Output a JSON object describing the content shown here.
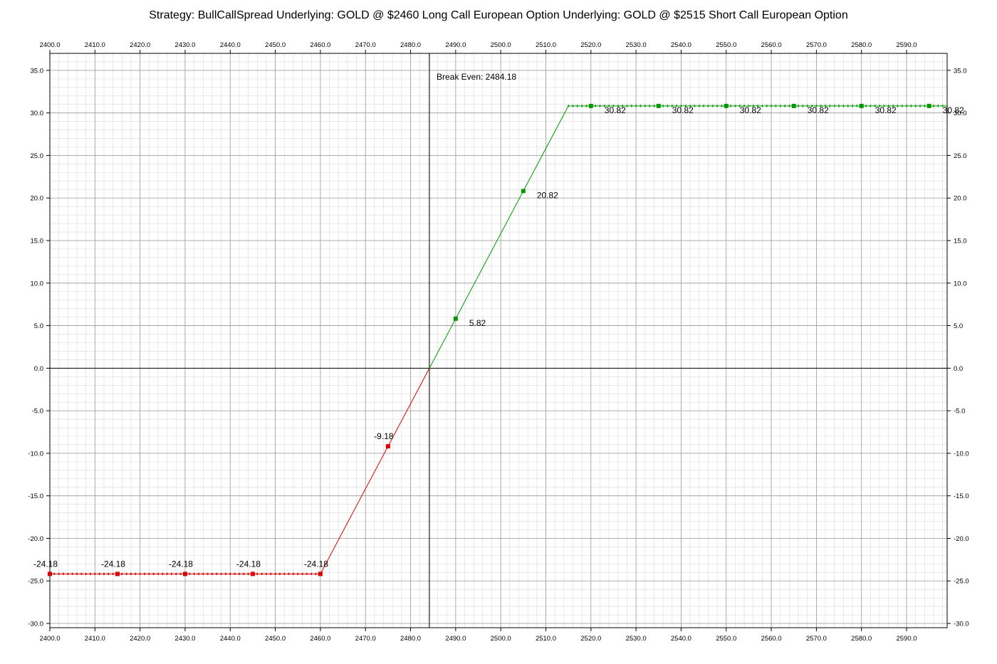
{
  "chart_data": {
    "type": "line",
    "title": "Strategy: BullCallSpread Underlying: GOLD @ $2460 Long Call European Option Underlying: GOLD @ $2515 Short Call European Option",
    "xlabel": "",
    "ylabel": "",
    "xlim": [
      2400,
      2599
    ],
    "ylim": [
      -30.5,
      37
    ],
    "x_ticks": [
      2400,
      2410,
      2420,
      2430,
      2440,
      2450,
      2460,
      2470,
      2480,
      2490,
      2500,
      2510,
      2520,
      2530,
      2540,
      2550,
      2560,
      2570,
      2580,
      2590
    ],
    "x_tick_labels": [
      "2400.0",
      "2410.0",
      "2420.0",
      "2430.0",
      "2440.0",
      "2450.0",
      "2460.0",
      "2470.0",
      "2480.0",
      "2490.0",
      "2500.0",
      "2510.0",
      "2520.0",
      "2530.0",
      "2540.0",
      "2550.0",
      "2560.0",
      "2570.0",
      "2580.0",
      "2590.0"
    ],
    "y_ticks": [
      35,
      30,
      25,
      20,
      15,
      10,
      5,
      0,
      -5,
      -10,
      -15,
      -20,
      -25,
      -30
    ],
    "y_tick_labels": [
      "35.0",
      "30.0",
      "25.0",
      "20.0",
      "15.0",
      "10.0",
      "5.0",
      "0.0",
      "-5.0",
      "-10.0",
      "-15.0",
      "-20.0",
      "-25.0",
      "-30.0"
    ],
    "grid": true,
    "minor_grid_step_x": 2,
    "minor_grid_step_y": 1,
    "break_even": {
      "x": 2484.18,
      "label": "Break Even: 2484.18"
    },
    "series": [
      {
        "name": "loss",
        "color": "#dd0000",
        "line": [
          [
            2400,
            -24.18
          ],
          [
            2460,
            -24.18
          ],
          [
            2484.18,
            0
          ]
        ],
        "markers": [
          {
            "x": 2400,
            "y": -24.18,
            "label": "-24.18"
          },
          {
            "x": 2415,
            "y": -24.18,
            "label": "-24.18"
          },
          {
            "x": 2430,
            "y": -24.18,
            "label": "-24.18"
          },
          {
            "x": 2445,
            "y": -24.18,
            "label": "-24.18"
          },
          {
            "x": 2460,
            "y": -24.18,
            "label": "-24.18"
          },
          {
            "x": 2475,
            "y": -9.18,
            "label": "-9.18"
          }
        ]
      },
      {
        "name": "profit",
        "color": "#009900",
        "line": [
          [
            2484.18,
            0
          ],
          [
            2515,
            30.82
          ],
          [
            2599,
            30.82
          ]
        ],
        "markers": [
          {
            "x": 2490,
            "y": 5.82,
            "label": "5.82"
          },
          {
            "x": 2505,
            "y": 20.82,
            "label": "20.82"
          },
          {
            "x": 2520,
            "y": 30.82,
            "label": "30.82"
          },
          {
            "x": 2535,
            "y": 30.82,
            "label": "30.82"
          },
          {
            "x": 2550,
            "y": 30.82,
            "label": "30.82"
          },
          {
            "x": 2565,
            "y": 30.82,
            "label": "30.82"
          },
          {
            "x": 2580,
            "y": 30.82,
            "label": "30.82"
          },
          {
            "x": 2595,
            "y": 30.82,
            "label": "30.82"
          }
        ]
      }
    ]
  }
}
